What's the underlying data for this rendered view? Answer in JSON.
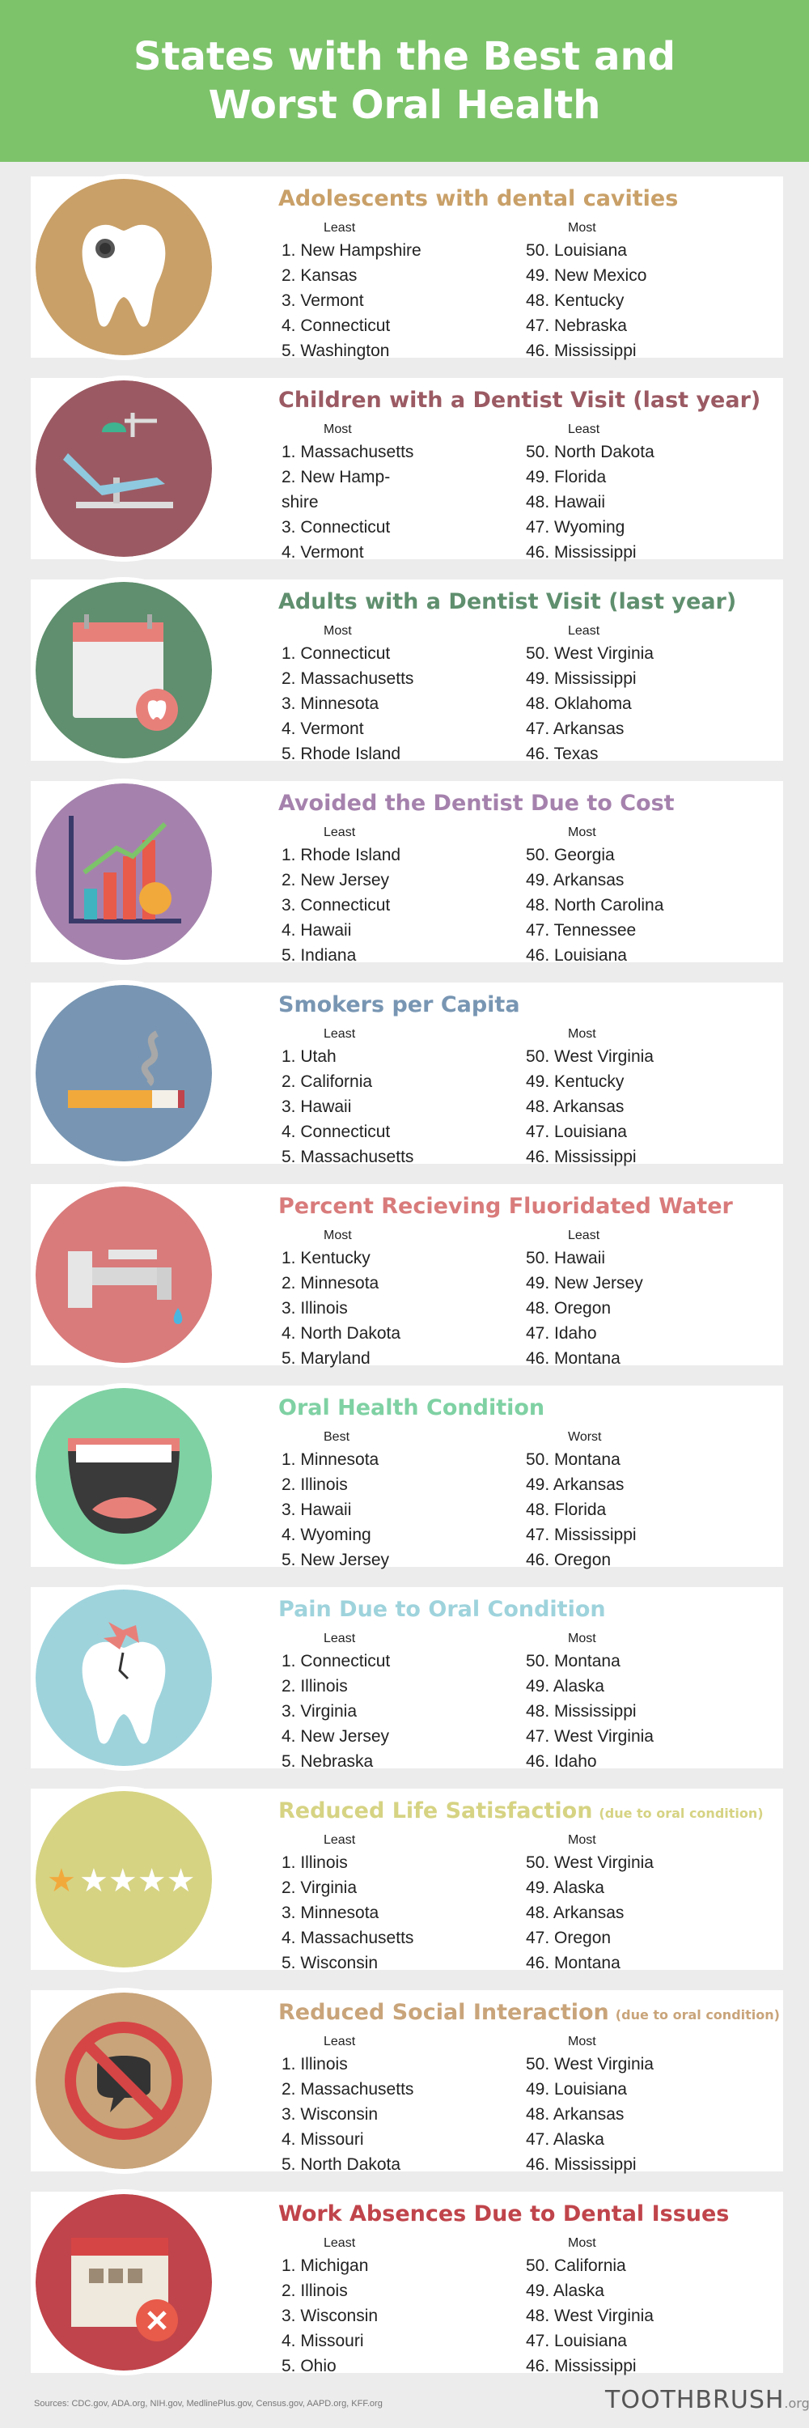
{
  "header": {
    "title": "States with the Best and Worst Oral Health"
  },
  "sections": [
    {
      "title": "Adolescents with dental cavities",
      "note": "",
      "color": "#c9a068",
      "icon": "tooth-cavity-icon",
      "col1_head": "Least",
      "col2_head": "Most",
      "col1": [
        "1. New Hampshire",
        "2. Kansas",
        "3. Vermont",
        "4. Connecticut",
        "5. Washington"
      ],
      "col2": [
        "50. Louisiana",
        "49. New Mexico",
        "48. Kentucky",
        "47. Nebraska",
        "46. Mississippi"
      ]
    },
    {
      "title": "Children with a Dentist Visit (last year)",
      "note": "",
      "color": "#9b5a63",
      "icon": "dental-chair-icon",
      "col1_head": "Most",
      "col2_head": "Least",
      "col1": [
        "1. Massachusetts",
        "2. New Hamp-",
        "shire",
        "3. Connecticut",
        "4. Vermont"
      ],
      "col2": [
        "50. North Dakota",
        "49. Florida",
        "48. Hawaii",
        "47. Wyoming",
        "46. Mississippi"
      ]
    },
    {
      "title": "Adults with a Dentist Visit (last year)",
      "note": "",
      "color": "#5f8f6e",
      "icon": "calendar-tooth-icon",
      "col1_head": "Most",
      "col2_head": "Least",
      "col1": [
        "1. Connecticut",
        "2. Massachusetts",
        "3. Minnesota",
        "4. Vermont",
        "5. Rhode Island"
      ],
      "col2": [
        "50. West Virginia",
        "49. Mississippi",
        "48. Oklahoma",
        "47. Arkansas",
        "46. Texas"
      ]
    },
    {
      "title": "Avoided the Dentist Due to Cost",
      "note": "",
      "color": "#a582ad",
      "icon": "bar-chart-coin-icon",
      "col1_head": "Least",
      "col2_head": "Most",
      "col1": [
        "1. Rhode Island",
        "2. New Jersey",
        "3. Connecticut",
        "4. Hawaii",
        "5. Indiana"
      ],
      "col2": [
        "50. Georgia",
        "49. Arkansas",
        "48. North Carolina",
        "47. Tennessee",
        "46. Louisiana"
      ]
    },
    {
      "title": "Smokers per Capita",
      "note": "",
      "color": "#7896b3",
      "icon": "cigarette-icon",
      "col1_head": "Least",
      "col2_head": "Most",
      "col1": [
        "1. Utah",
        "2. California",
        "3. Hawaii",
        "4. Connecticut",
        "5. Massachusetts"
      ],
      "col2": [
        "50. West Virginia",
        "49. Kentucky",
        "48. Arkansas",
        "47. Louisiana",
        "46. Mississippi"
      ]
    },
    {
      "title": "Percent Recieving Fluoridated Water",
      "note": "",
      "color": "#d97b7b",
      "icon": "water-faucet-icon",
      "col1_head": "Most",
      "col2_head": "Least",
      "col1": [
        "1. Kentucky",
        "2. Minnesota",
        "3. Illinois",
        "4. North Dakota",
        "5. Maryland"
      ],
      "col2": [
        "50. Hawaii",
        "49. New Jersey",
        "48. Oregon",
        "47. Idaho",
        "46. Montana"
      ]
    },
    {
      "title": "Oral Health Condition",
      "note": "",
      "color": "#7fd1a3",
      "icon": "open-mouth-icon",
      "col1_head": "Best",
      "col2_head": "Worst",
      "col1": [
        "1. Minnesota",
        "2. Illinois",
        "3. Hawaii",
        "4. Wyoming",
        "5. New Jersey"
      ],
      "col2": [
        "50. Montana",
        "49. Arkansas",
        "48. Florida",
        "47. Mississippi",
        "46. Oregon"
      ]
    },
    {
      "title": "Pain Due to Oral Condition",
      "note": "",
      "color": "#9ed3dc",
      "icon": "tooth-pain-icon",
      "col1_head": "Least",
      "col2_head": "Most",
      "col1": [
        "1. Connecticut",
        "2. Illinois",
        "3. Virginia",
        "4. New Jersey",
        "5. Nebraska"
      ],
      "col2": [
        "50. Montana",
        "49. Alaska",
        "48. Mississippi",
        "47. West Virginia",
        "46. Idaho"
      ]
    },
    {
      "title": "Reduced Life Satisfaction",
      "note": "(due to oral condition)",
      "color": "#d6d383",
      "icon": "star-rating-icon",
      "col1_head": "Least",
      "col2_head": "Most",
      "col1": [
        "1. Illinois",
        "2. Virginia",
        "3. Minnesota",
        "4. Massachusetts",
        "5. Wisconsin"
      ],
      "col2": [
        "50. West Virginia",
        "49. Alaska",
        "48. Arkansas",
        "47. Oregon",
        "46. Montana"
      ]
    },
    {
      "title": "Reduced Social Interaction",
      "note": "(due to oral condition)",
      "color": "#c9a47a",
      "icon": "no-chat-icon",
      "col1_head": "Least",
      "col2_head": "Most",
      "col1": [
        "1. Illinois",
        "2. Massachusetts",
        "3. Wisconsin",
        "4. Missouri",
        "5. North Dakota"
      ],
      "col2": [
        "50. West Virginia",
        "49. Louisiana",
        "48. Arkansas",
        "47. Alaska",
        "46. Mississippi"
      ]
    },
    {
      "title": "Work Absences Due to Dental Issues",
      "note": "",
      "color": "#c0444b",
      "icon": "calendar-cancel-icon",
      "col1_head": "Least",
      "col2_head": "Most",
      "col1": [
        "1. Michigan",
        "2. Illinois",
        "3. Wisconsin",
        "4. Missouri",
        "5. Ohio"
      ],
      "col2": [
        "50. California",
        "49. Alaska",
        "48. West Virginia",
        "47. Louisiana",
        "46. Mississippi"
      ]
    }
  ],
  "footer": {
    "sources": "Sources: CDC.gov, ADA.org, NIH.gov, MedlinePlus.gov, Census.gov, AAPD.org, KFF.org",
    "brand": "TOOTHBRUSH",
    "brand_suffix": ".org"
  }
}
